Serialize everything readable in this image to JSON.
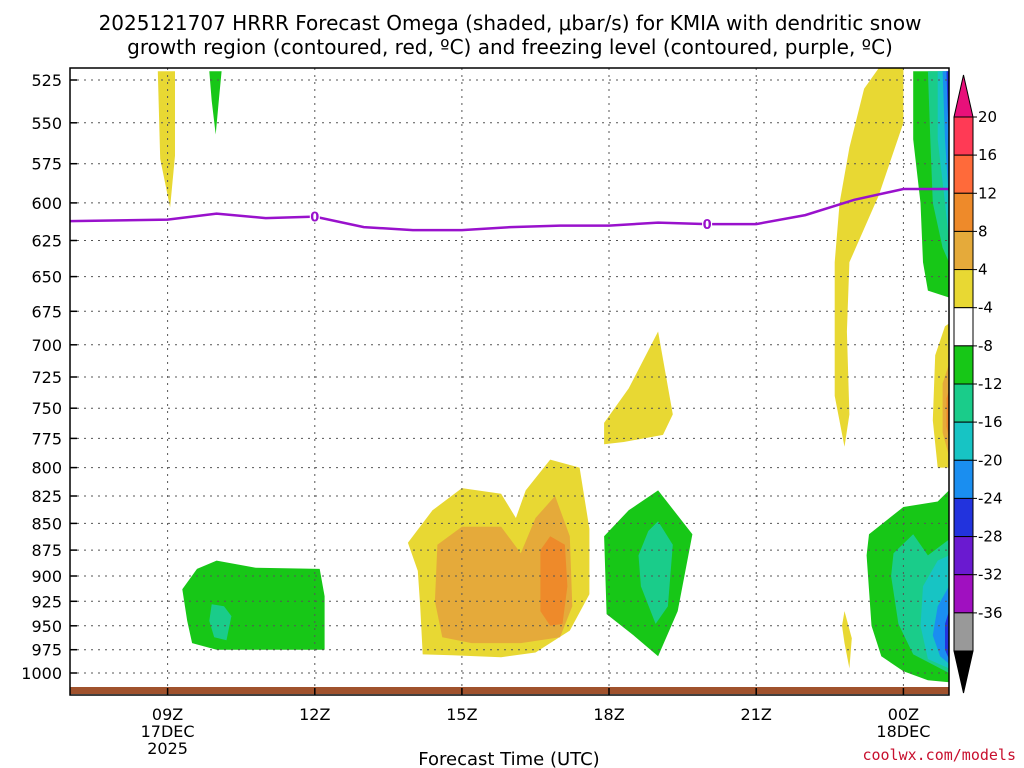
{
  "chart_data": {
    "type": "heatmap",
    "title_lines": [
      "2025121707 HRRR Forecast Omega (shaded, μbar/s) for KMIA with dendritic snow",
      "growth region (contoured, red, ºC) and freezing level (contoured, purple, ºC)"
    ],
    "xlabel": "Forecast Time (UTC)",
    "credit": "coolwx.com/models",
    "x_ticks": [
      {
        "h": 9,
        "lines": [
          "09Z",
          "17DEC",
          "2025"
        ]
      },
      {
        "h": 12,
        "lines": [
          "12Z"
        ]
      },
      {
        "h": 15,
        "lines": [
          "15Z"
        ]
      },
      {
        "h": 18,
        "lines": [
          "18Z"
        ]
      },
      {
        "h": 21,
        "lines": [
          "21Z"
        ]
      },
      {
        "h": 24,
        "lines": [
          "00Z",
          "18DEC"
        ]
      }
    ],
    "xlim": [
      7,
      25
    ],
    "y_ticks": [
      525,
      550,
      575,
      600,
      625,
      650,
      675,
      700,
      725,
      750,
      775,
      800,
      825,
      850,
      875,
      900,
      925,
      950,
      975,
      1000
    ],
    "ylim": [
      520,
      1010
    ],
    "y_scale": "log",
    "grid": true,
    "colorbar": {
      "levels": [
        20,
        16,
        12,
        8,
        4,
        -4,
        -8,
        -12,
        -16,
        -20,
        -24,
        -28,
        -32,
        -36
      ],
      "colors": [
        "#ff3a55",
        "#ff6a3a",
        "#ee8a2a",
        "#e5aa3a",
        "#e8d833",
        "#ffffff",
        "#17c717",
        "#1acc8a",
        "#17c4c4",
        "#1a8ef0",
        "#2233dd",
        "#6a1ad0",
        "#a010c0",
        "#999999"
      ],
      "top_color": "#e8107a",
      "bottom_color": "#000000"
    },
    "freezing_level": {
      "color": "#9911cc",
      "label": "0",
      "points": [
        [
          7,
          612
        ],
        [
          9,
          611
        ],
        [
          10,
          607
        ],
        [
          11,
          610
        ],
        [
          12,
          609
        ],
        [
          13,
          616
        ],
        [
          14,
          618
        ],
        [
          15,
          618
        ],
        [
          16,
          616
        ],
        [
          17,
          615
        ],
        [
          18,
          615
        ],
        [
          19,
          613
        ],
        [
          20,
          614
        ],
        [
          21,
          614
        ],
        [
          22,
          608
        ],
        [
          23,
          598
        ],
        [
          24,
          591
        ],
        [
          24.5,
          591
        ],
        [
          24.95,
          591
        ]
      ],
      "label_hours": [
        12,
        20
      ]
    },
    "omega_regions": [
      {
        "level": 4,
        "color": "#e8d833",
        "points": [
          [
            8.8,
            520
          ],
          [
            9.15,
            520
          ],
          [
            9.15,
            570
          ],
          [
            9.05,
            603
          ],
          [
            8.85,
            572
          ]
        ]
      },
      {
        "level": -4,
        "color": "#17c717",
        "points": [
          [
            9.85,
            520
          ],
          [
            10.1,
            520
          ],
          [
            10.05,
            535
          ],
          [
            9.98,
            557
          ],
          [
            9.9,
            537
          ]
        ]
      },
      {
        "level": -4,
        "color": "#17c717",
        "points": [
          [
            9.3,
            913
          ],
          [
            9.6,
            893
          ],
          [
            10.0,
            885
          ],
          [
            10.8,
            892
          ],
          [
            12.1,
            893
          ],
          [
            12.2,
            920
          ],
          [
            12.2,
            975
          ],
          [
            11.0,
            975
          ],
          [
            10.0,
            975
          ],
          [
            9.5,
            968
          ],
          [
            9.4,
            945
          ]
        ]
      },
      {
        "level": -8,
        "color": "#1acc8a",
        "points": [
          [
            9.9,
            928
          ],
          [
            10.15,
            930
          ],
          [
            10.3,
            940
          ],
          [
            10.2,
            965
          ],
          [
            9.95,
            962
          ],
          [
            9.85,
            945
          ]
        ]
      },
      {
        "level": 4,
        "color": "#e8d833",
        "points": [
          [
            13.9,
            868
          ],
          [
            14.4,
            838
          ],
          [
            15.0,
            818
          ],
          [
            15.8,
            823
          ],
          [
            16.1,
            845
          ],
          [
            16.3,
            820
          ],
          [
            16.8,
            793
          ],
          [
            17.4,
            800
          ],
          [
            17.6,
            855
          ],
          [
            17.6,
            918
          ],
          [
            17.2,
            955
          ],
          [
            16.5,
            978
          ],
          [
            15.8,
            983
          ],
          [
            14.8,
            981
          ],
          [
            14.2,
            980
          ],
          [
            14.15,
            930
          ],
          [
            14.1,
            895
          ]
        ]
      },
      {
        "level": 8,
        "color": "#e5aa3a",
        "points": [
          [
            14.5,
            870
          ],
          [
            15.0,
            853
          ],
          [
            15.8,
            853
          ],
          [
            16.2,
            878
          ],
          [
            16.5,
            845
          ],
          [
            16.9,
            825
          ],
          [
            17.2,
            862
          ],
          [
            17.25,
            930
          ],
          [
            17.0,
            962
          ],
          [
            16.2,
            968
          ],
          [
            15.2,
            968
          ],
          [
            14.6,
            962
          ],
          [
            14.45,
            925
          ]
        ]
      },
      {
        "level": 12,
        "color": "#ee8a2a",
        "points": [
          [
            16.6,
            875
          ],
          [
            16.8,
            862
          ],
          [
            17.1,
            870
          ],
          [
            17.15,
            910
          ],
          [
            17.05,
            948
          ],
          [
            16.8,
            950
          ],
          [
            16.6,
            935
          ]
        ]
      },
      {
        "level": 4,
        "color": "#e8d833",
        "points": [
          [
            17.9,
            762
          ],
          [
            18.4,
            734
          ],
          [
            19.0,
            690
          ],
          [
            19.3,
            755
          ],
          [
            19.1,
            772
          ],
          [
            18.3,
            778
          ],
          [
            17.9,
            780
          ]
        ]
      },
      {
        "level": -4,
        "color": "#17c717",
        "points": [
          [
            17.9,
            862
          ],
          [
            18.4,
            838
          ],
          [
            19.0,
            820
          ],
          [
            19.7,
            860
          ],
          [
            19.4,
            935
          ],
          [
            19.0,
            982
          ],
          [
            18.5,
            960
          ],
          [
            17.95,
            938
          ]
        ]
      },
      {
        "level": -8,
        "color": "#1acc8a",
        "points": [
          [
            18.6,
            880
          ],
          [
            18.8,
            857
          ],
          [
            19.0,
            848
          ],
          [
            19.3,
            870
          ],
          [
            19.2,
            930
          ],
          [
            18.95,
            948
          ],
          [
            18.65,
            910
          ]
        ]
      },
      {
        "level": 4,
        "color": "#e8d833",
        "points": [
          [
            22.6,
            640
          ],
          [
            22.7,
            600
          ],
          [
            22.9,
            565
          ],
          [
            23.2,
            530
          ],
          [
            23.5,
            515
          ],
          [
            24.0,
            515
          ],
          [
            24.0,
            550
          ],
          [
            23.5,
            595
          ],
          [
            22.9,
            640
          ],
          [
            22.85,
            690
          ],
          [
            22.9,
            755
          ],
          [
            22.8,
            782
          ],
          [
            22.6,
            740
          ],
          [
            22.6,
            690
          ]
        ]
      },
      {
        "level": 4,
        "color": "#e8d833",
        "points": [
          [
            22.8,
            935
          ],
          [
            22.95,
            963
          ],
          [
            22.9,
            995
          ],
          [
            22.8,
            968
          ],
          [
            22.75,
            950
          ]
        ]
      },
      {
        "level": -4,
        "color": "#17c717",
        "points": [
          [
            23.3,
            860
          ],
          [
            24.0,
            835
          ],
          [
            24.7,
            830
          ],
          [
            24.95,
            820
          ],
          [
            24.95,
            1010
          ],
          [
            24.5,
            1008
          ],
          [
            24.0,
            998
          ],
          [
            23.55,
            982
          ],
          [
            23.35,
            950
          ],
          [
            23.25,
            880
          ]
        ]
      },
      {
        "level": -8,
        "color": "#1acc8a",
        "points": [
          [
            23.8,
            878
          ],
          [
            24.2,
            860
          ],
          [
            24.5,
            880
          ],
          [
            24.95,
            865
          ],
          [
            24.95,
            1000
          ],
          [
            24.2,
            980
          ],
          [
            23.9,
            948
          ],
          [
            23.75,
            900
          ]
        ]
      },
      {
        "level": -12,
        "color": "#17c4c4",
        "points": [
          [
            24.4,
            910
          ],
          [
            24.7,
            885
          ],
          [
            24.95,
            880
          ],
          [
            24.95,
            995
          ],
          [
            24.5,
            985
          ],
          [
            24.35,
            950
          ]
        ]
      },
      {
        "level": -16,
        "color": "#1a8ef0",
        "points": [
          [
            24.7,
            930
          ],
          [
            24.95,
            910
          ],
          [
            24.95,
            990
          ],
          [
            24.75,
            982
          ],
          [
            24.6,
            960
          ]
        ]
      },
      {
        "level": -20,
        "color": "#2233dd",
        "points": [
          [
            24.85,
            948
          ],
          [
            24.95,
            935
          ],
          [
            24.95,
            985
          ],
          [
            24.85,
            975
          ]
        ]
      },
      {
        "level": -4,
        "color": "#17c717",
        "points": [
          [
            24.2,
            520
          ],
          [
            24.95,
            520
          ],
          [
            24.95,
            665
          ],
          [
            24.5,
            660
          ],
          [
            24.4,
            640
          ],
          [
            24.35,
            600
          ],
          [
            24.2,
            560
          ]
        ]
      },
      {
        "level": -8,
        "color": "#1acc8a",
        "points": [
          [
            24.5,
            520
          ],
          [
            24.95,
            520
          ],
          [
            24.95,
            640
          ],
          [
            24.8,
            630
          ],
          [
            24.6,
            600
          ],
          [
            24.55,
            560
          ]
        ]
      },
      {
        "level": -12,
        "color": "#17c4c4",
        "points": [
          [
            24.7,
            520
          ],
          [
            24.95,
            520
          ],
          [
            24.95,
            625
          ],
          [
            24.85,
            600
          ],
          [
            24.7,
            560
          ]
        ]
      },
      {
        "level": -16,
        "color": "#1a8ef0",
        "points": [
          [
            24.8,
            520
          ],
          [
            24.95,
            520
          ],
          [
            24.95,
            600
          ],
          [
            24.85,
            560
          ]
        ]
      },
      {
        "level": -20,
        "color": "#2233dd",
        "points": [
          [
            24.88,
            520
          ],
          [
            24.95,
            520
          ],
          [
            24.95,
            560
          ],
          [
            24.9,
            540
          ]
        ]
      },
      {
        "level": 4,
        "color": "#e8d833",
        "points": [
          [
            24.65,
            708
          ],
          [
            24.85,
            686
          ],
          [
            24.95,
            684
          ],
          [
            24.95,
            800
          ],
          [
            24.7,
            800
          ],
          [
            24.6,
            760
          ]
        ]
      },
      {
        "level": 8,
        "color": "#e5aa3a",
        "points": [
          [
            24.8,
            730
          ],
          [
            24.95,
            715
          ],
          [
            24.95,
            790
          ],
          [
            24.8,
            770
          ]
        ]
      },
      {
        "level": 12,
        "color": "#ee8a2a",
        "points": [
          [
            24.88,
            742
          ],
          [
            24.95,
            735
          ],
          [
            24.95,
            775
          ],
          [
            24.88,
            765
          ]
        ]
      }
    ],
    "surface": {
      "color": "#a0522d"
    }
  }
}
